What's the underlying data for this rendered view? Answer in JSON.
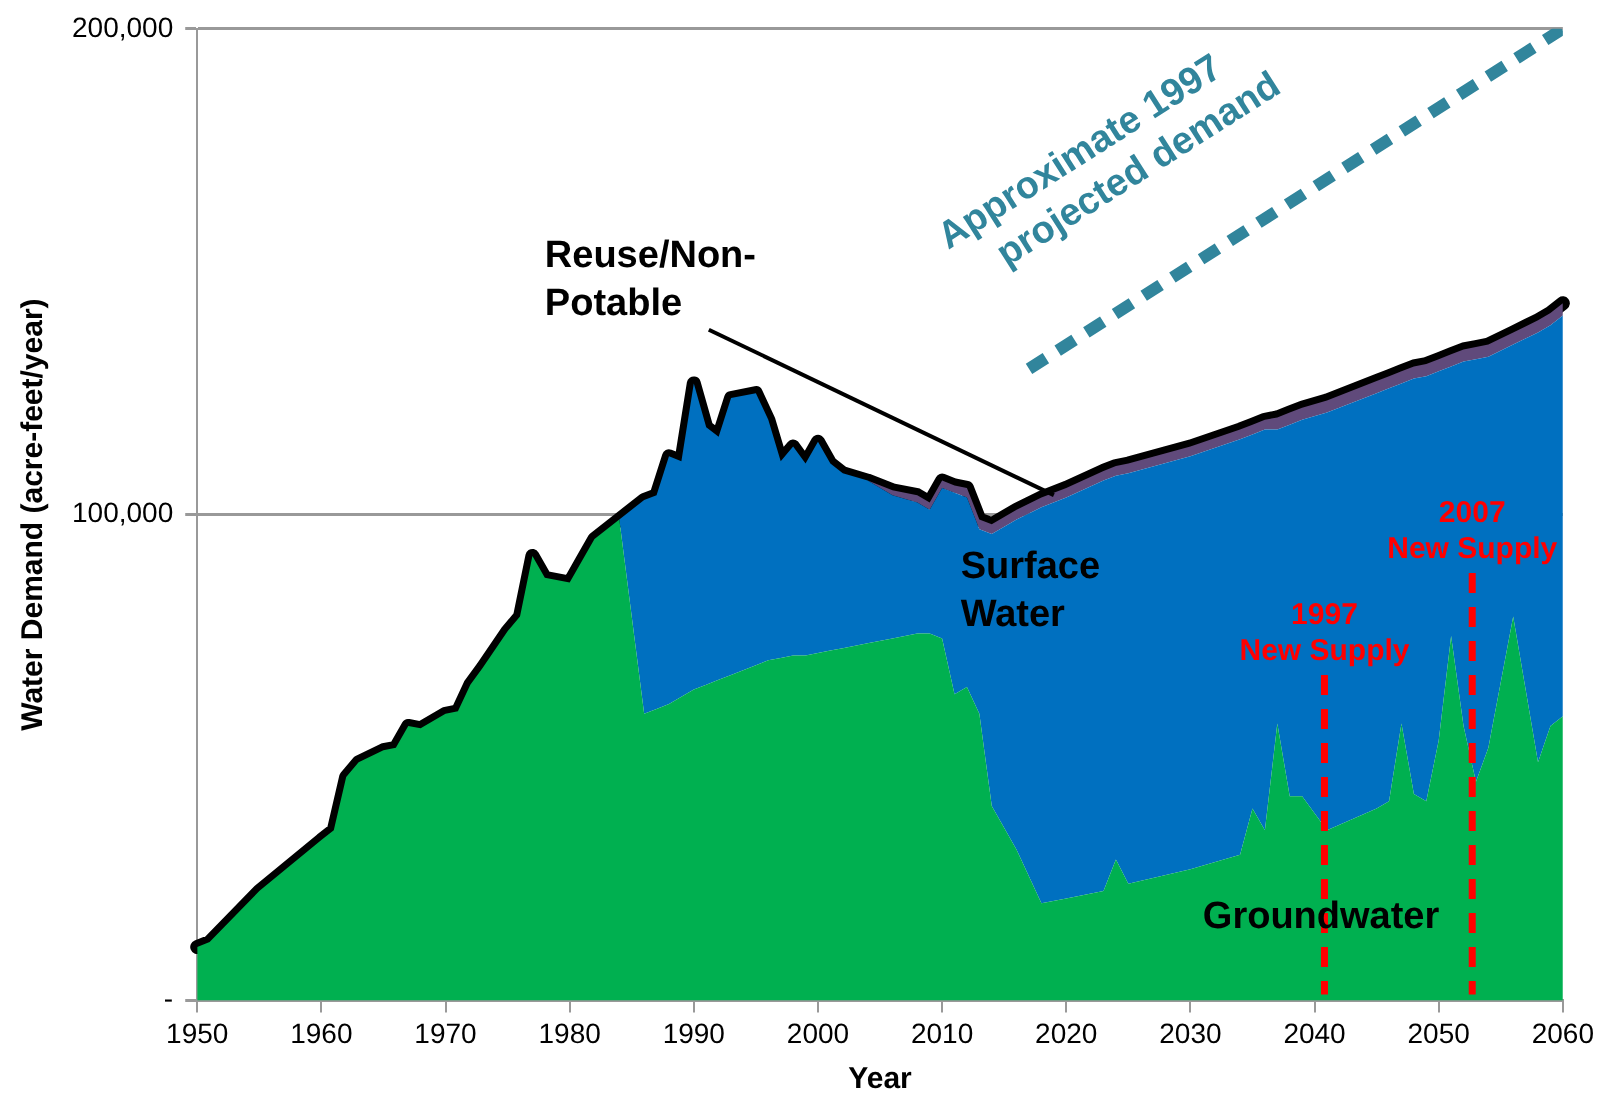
{
  "chart_data": {
    "type": "area",
    "xlabel": "Year",
    "ylabel": "Water Demand (acre-feet/year)",
    "x": [
      1950,
      1951,
      1955,
      1960,
      1961,
      1962,
      1963,
      1965,
      1966,
      1967,
      1968,
      1970,
      1971,
      1972,
      1973,
      1975,
      1976,
      1977,
      1978,
      1980,
      1981,
      1982,
      1984,
      1986,
      1987,
      1988,
      1989,
      1990,
      1991,
      1992,
      1993,
      1995,
      1996,
      1997,
      1998,
      1999,
      2000,
      2001,
      2002,
      2004,
      2006,
      2008,
      2009,
      2010,
      2011,
      2012,
      2013,
      2014,
      2016,
      2018,
      2020,
      2023,
      2024,
      2025,
      2030,
      2034,
      2035,
      2036,
      2037,
      2038,
      2039,
      2041,
      2045,
      2046,
      2047,
      2048,
      2049,
      2050,
      2051,
      2052,
      2053,
      2054,
      2056,
      2058,
      2059,
      2060
    ],
    "series": [
      {
        "name": "Groundwater",
        "color": "#00b050",
        "values": [
          11000,
          12000,
          22500,
          33000,
          35000,
          46000,
          49000,
          51500,
          52000,
          56500,
          56000,
          59000,
          59500,
          65000,
          68500,
          76000,
          79000,
          91500,
          87000,
          86000,
          90500,
          95000,
          99000,
          59000,
          60000,
          61000,
          62500,
          64000,
          65000,
          66000,
          67000,
          69000,
          70000,
          70500,
          71000,
          71000,
          71500,
          72000,
          72500,
          73500,
          74500,
          75500,
          75500,
          74500,
          63000,
          64500,
          59000,
          40000,
          31000,
          20000,
          21000,
          22500,
          29000,
          24000,
          27000,
          30000,
          39500,
          35000,
          57000,
          42000,
          42000,
          35000,
          39500,
          41000,
          57000,
          42500,
          41000,
          53500,
          75000,
          56500,
          45000,
          52000,
          79000,
          49000,
          56500,
          58500
        ]
      },
      {
        "name": "Surface Water",
        "color": "#0070c0",
        "values": [
          0,
          0,
          0,
          0,
          0,
          0,
          0,
          0,
          0,
          0,
          0,
          0,
          0,
          0,
          0,
          0,
          0,
          0,
          0,
          0,
          0,
          0,
          0,
          44000,
          44000,
          51000,
          48500,
          63000,
          53000,
          50000,
          57000,
          56000,
          49500,
          40500,
          43000,
          39500,
          43500,
          38500,
          36000,
          33500,
          29500,
          27000,
          25500,
          31000,
          41500,
          39000,
          38000,
          56000,
          68000,
          81500,
          82500,
          84500,
          79000,
          84500,
          85000,
          85500,
          77000,
          82500,
          60500,
          76500,
          77500,
          86000,
          85500,
          85000,
          70000,
          85500,
          87500,
          76000,
          55500,
          75000,
          87000,
          80500,
          56000,
          88500,
          82500,
          82500
        ]
      },
      {
        "name": "Reuse/Non-Potable",
        "color": "#604a7b",
        "values": [
          0,
          0,
          0,
          0,
          0,
          0,
          0,
          0,
          0,
          0,
          0,
          0,
          0,
          0,
          0,
          0,
          0,
          0,
          0,
          0,
          0,
          0,
          0,
          0,
          0,
          0,
          0,
          0,
          0,
          0,
          0,
          0,
          0,
          0,
          0,
          0,
          0,
          0,
          0,
          0,
          1000,
          1500,
          1500,
          1500,
          1500,
          2000,
          2000,
          2000,
          2000,
          2000,
          2000,
          2000,
          2000,
          2000,
          2000,
          2000,
          2000,
          2000,
          2500,
          2500,
          2500,
          2500,
          2500,
          2500,
          2500,
          2500,
          2500,
          2500,
          2500,
          2500,
          2500,
          2500,
          2500,
          2500,
          2500,
          2500
        ]
      },
      {
        "name": "Approximate 1997 projected demand",
        "type": "line",
        "color": "#31859c",
        "line_style": "dashed",
        "marker": "none",
        "x": [
          2017,
          2060
        ],
        "values": [
          130000,
          200000
        ]
      }
    ],
    "stacked": true,
    "xlim": [
      1950,
      2060
    ],
    "xticks": [
      {
        "value": 1950,
        "label": "1950"
      },
      {
        "value": 1960,
        "label": "1960"
      },
      {
        "value": 1970,
        "label": "1970"
      },
      {
        "value": 1980,
        "label": "1980"
      },
      {
        "value": 1990,
        "label": "1990"
      },
      {
        "value": 2000,
        "label": "2000"
      },
      {
        "value": 2010,
        "label": "2010"
      },
      {
        "value": 2020,
        "label": "2020"
      },
      {
        "value": 2030,
        "label": "2030"
      },
      {
        "value": 2040,
        "label": "2040"
      },
      {
        "value": 2050,
        "label": "2050"
      },
      {
        "value": 2060,
        "label": "2060"
      }
    ],
    "ylim": [
      0,
      200000
    ],
    "yticks": [
      {
        "value": 0,
        "label": "-"
      },
      {
        "value": 100000,
        "label": "100,000"
      },
      {
        "value": 200000,
        "label": "200,000"
      }
    ],
    "grid": "y",
    "legend": false,
    "ref_lines": [
      {
        "axis": "x",
        "value": 2040.8,
        "label": "1997\nNew Supply",
        "color": "#ff0000",
        "line_style": "dashed"
      },
      {
        "axis": "x",
        "value": 2052.7,
        "label": "2007\nNew Supply",
        "color": "#ff0000",
        "line_style": "dashed"
      }
    ]
  }
}
